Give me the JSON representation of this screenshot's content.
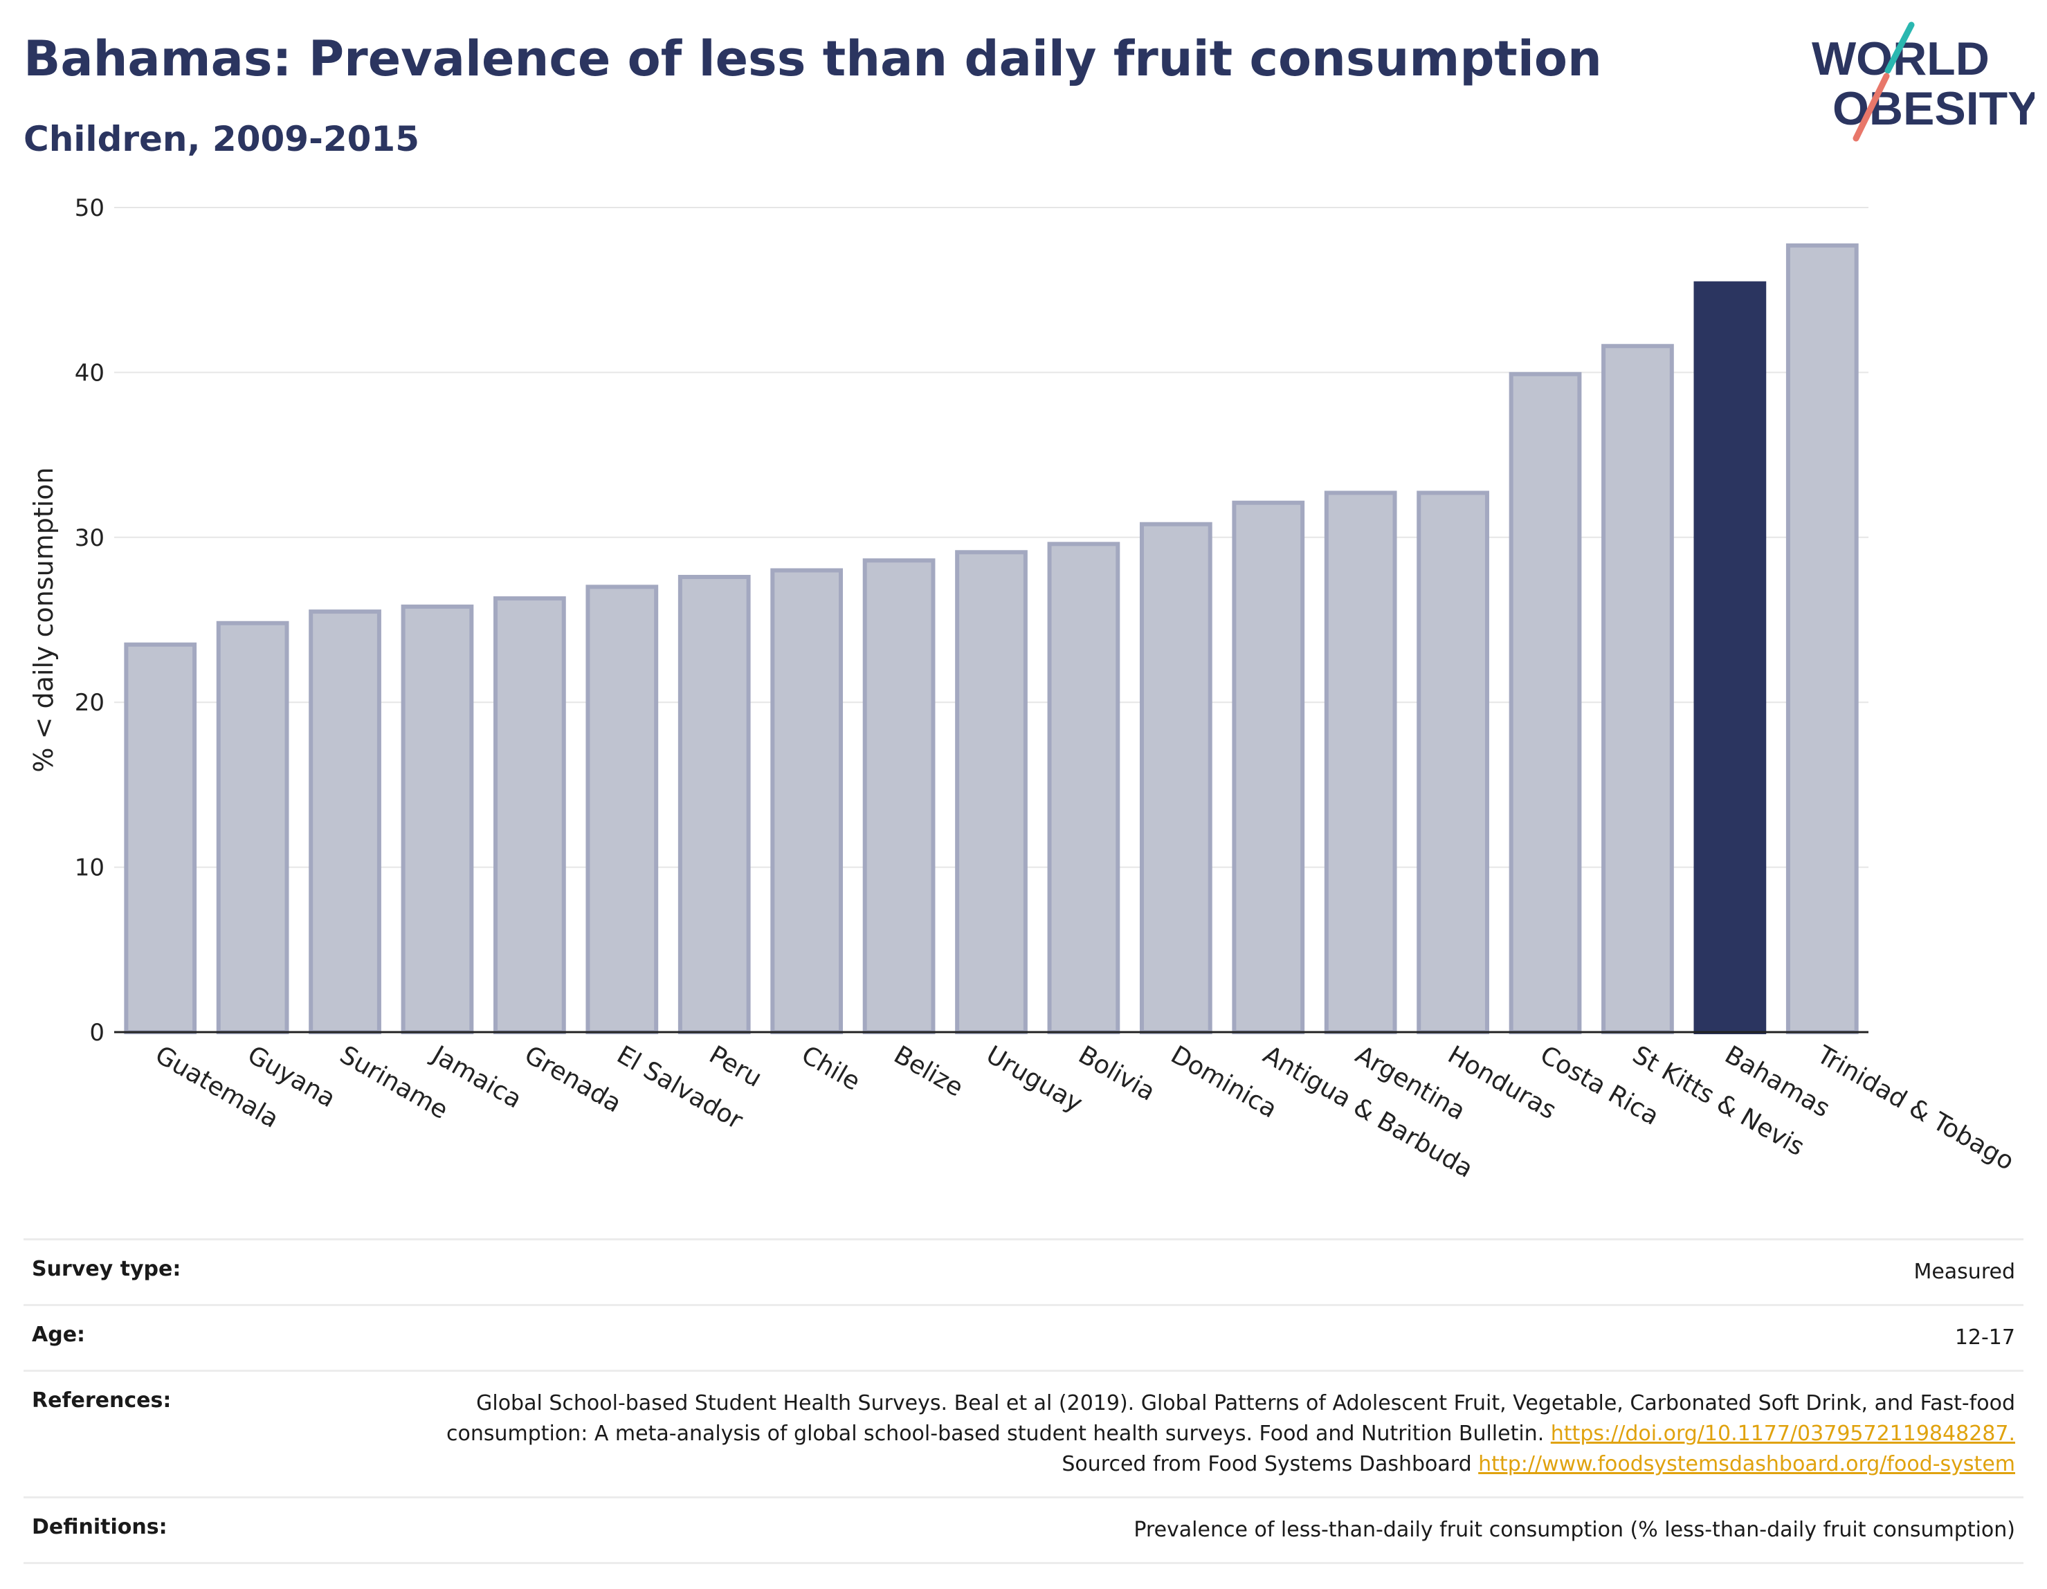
{
  "header": {
    "title": "Bahamas: Prevalence of less than daily fruit consumption",
    "subtitle": "Children, 2009-2015",
    "logo_line1": "WORLD",
    "logo_line2": "OBESITY"
  },
  "chart_data": {
    "type": "bar",
    "title": "Bahamas: Prevalence of less than daily fruit consumption",
    "subtitle": "Children, 2009-2015",
    "xlabel": "",
    "ylabel": "% < daily consumption",
    "ylim": [
      0,
      50
    ],
    "yticks": [
      0,
      10,
      20,
      30,
      40,
      50
    ],
    "grid": true,
    "highlight_category": "Bahamas",
    "categories": [
      "Guatemala",
      "Guyana",
      "Suriname",
      "Jamaica",
      "Grenada",
      "El Salvador",
      "Peru",
      "Chile",
      "Belize",
      "Uruguay",
      "Bolivia",
      "Dominica",
      "Antigua & Barbuda",
      "Argentina",
      "Honduras",
      "Costa Rica",
      "St Kitts & Nevis",
      "Bahamas",
      "Trinidad & Tobago"
    ],
    "values": [
      23.5,
      24.8,
      25.5,
      25.8,
      26.3,
      27.0,
      27.6,
      28.0,
      28.6,
      29.1,
      29.6,
      30.8,
      32.1,
      32.7,
      32.7,
      39.9,
      41.6,
      45.4,
      47.7
    ],
    "colors": {
      "default_fill": "#bfc3d0",
      "default_stroke": "#a3a8c0",
      "highlight_fill": "#2b3560",
      "grid": "#e6e6e6",
      "axis": "#222222"
    }
  },
  "meta": {
    "survey_type_label": "Survey type:",
    "survey_type_value": "Measured",
    "age_label": "Age:",
    "age_value": "12-17",
    "references_label": "References:",
    "references_text_1": "Global School-based Student Health Surveys. Beal et al (2019). Global Patterns of Adolescent Fruit, Vegetable, Carbonated Soft Drink, and Fast-food consumption: A meta-analysis of global school-based student health surveys. Food and Nutrition Bulletin. ",
    "references_link_1": "https://doi.org/10.1177/0379572119848287.",
    "references_text_2": " Sourced from Food Systems Dashboard ",
    "references_link_2": "http://www.foodsystemsdashboard.org/food-system",
    "definitions_label": "Definitions:",
    "definitions_value": "Prevalence of less-than-daily fruit consumption (% less-than-daily fruit consumption)"
  }
}
